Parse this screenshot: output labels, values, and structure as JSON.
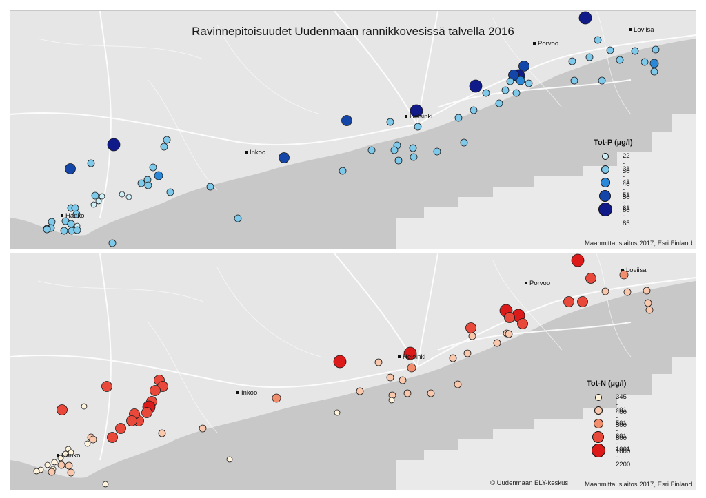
{
  "title": "Ravinnepitoisuudet Uudenmaan rannikkovesissä talvella 2016",
  "maps": [
    {
      "towns": [
        "Loviisa",
        "Porvoo",
        "Helsinki",
        "Inkoo",
        "Hanko"
      ],
      "legend_title": "Tot-P (µg/l)",
      "legend_classes": [
        "22 - 30",
        "31 - 40",
        "41 - 50",
        "51 - 60",
        "61 - 85"
      ],
      "class_colors": [
        "#cdeef7",
        "#7ec9ea",
        "#2b88d8",
        "#1346a8",
        "#101a88"
      ],
      "credit": "Maanmittauslaitos 2017, Esri Finland"
    },
    {
      "towns": [
        "Loviisa",
        "Porvoo",
        "Helsinki",
        "Inkoo",
        "Hanko"
      ],
      "legend_title": "Tot-N (µg/l)",
      "legend_classes": [
        "345 - 400",
        "401 - 500",
        "501 - 600",
        "601 - 1000",
        "1001 - 2200"
      ],
      "class_colors": [
        "#fff3dc",
        "#f8c7ac",
        "#f08e6e",
        "#e8493a",
        "#dd1a1a"
      ],
      "credit": "Maanmittauslaitos 2017, Esri Finland",
      "copyright": "© Uudenmaan ELY-keskus"
    }
  ]
}
